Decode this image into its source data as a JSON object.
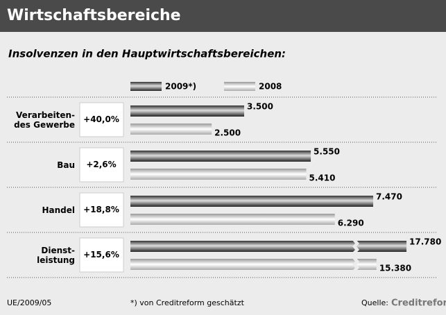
{
  "chart_data": {
    "type": "bar",
    "title": "Wirtschaftsbereiche",
    "subtitle": "Insolvenzen in den Hauptwirtschaftsbereichen:",
    "categories": [
      "Verarbeiten-\ndes Gewerbe",
      "Bau",
      "Handel",
      "Dienst-\nleistung"
    ],
    "change_labels": [
      "+40,0%",
      "+2,6%",
      "+18,8%",
      "+15,6%"
    ],
    "series": [
      {
        "name": "2009*)",
        "color": "dark",
        "values": [
          3500,
          5550,
          7470,
          17780
        ],
        "value_labels": [
          "3.500",
          "5.550",
          "7.470",
          "17.780"
        ]
      },
      {
        "name": "2008",
        "color": "light",
        "values": [
          2500,
          5410,
          6290,
          15380
        ],
        "value_labels": [
          "2.500",
          "5.410",
          "6.290",
          "15.380"
        ]
      }
    ],
    "footnote": "*) von Creditreform geschätzt",
    "code": "UE/2009/05",
    "source_label": "Quelle:",
    "source": "Creditreform"
  }
}
